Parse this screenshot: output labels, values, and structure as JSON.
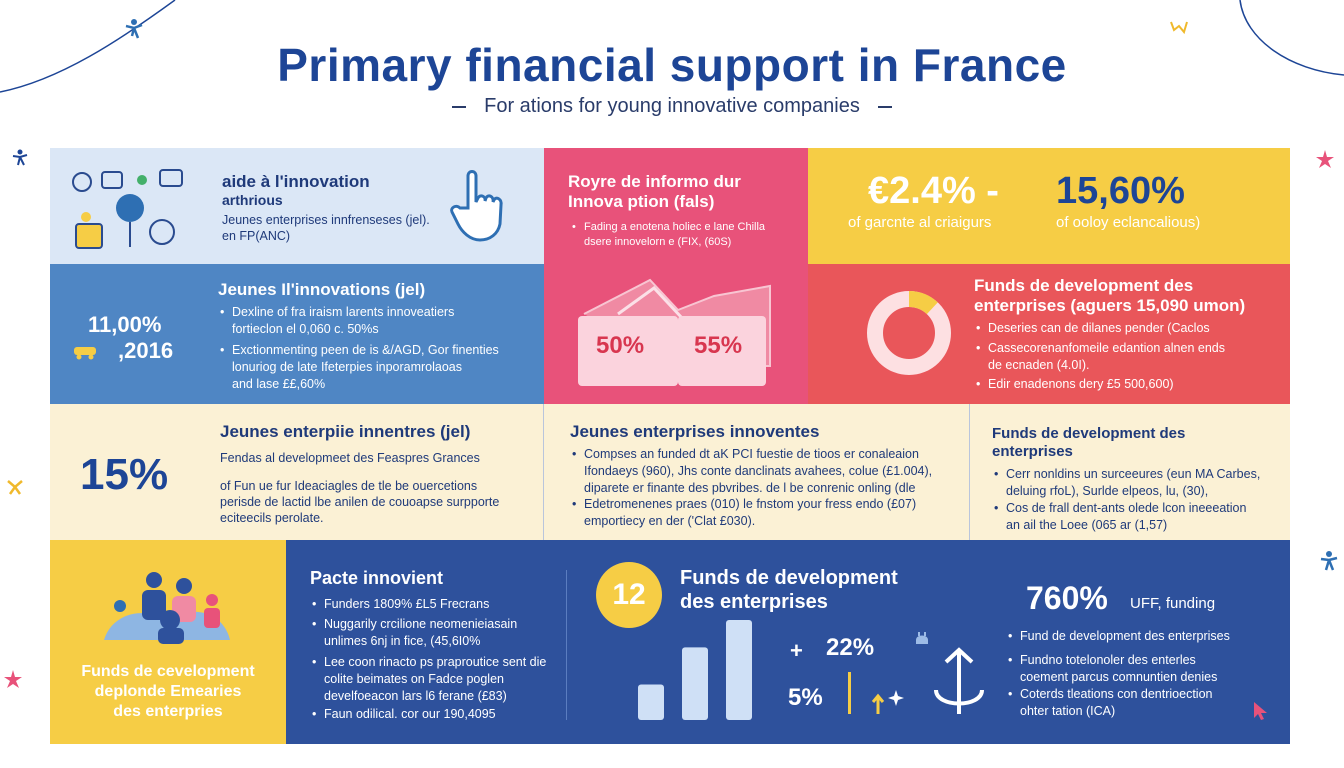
{
  "title": "Primary financial support in France",
  "subtitle": "For ations for young innovative companies",
  "row1": {
    "aide": {
      "title": "aide à l'innovation",
      "sub": "arthrious",
      "line1": "Jeunes enterprises innfrenseses (jel).",
      "line2": "en FP(ANC)"
    },
    "pink": {
      "title1": "Royre de informo dur",
      "title2": "Innova ption (fals)",
      "bullet1a": "Fading a enotena holiec e lane Chilla",
      "bullet1b": "dsere innovelorn e (FIX, (60S)"
    },
    "yellow": {
      "stat1": "€2.4% -",
      "stat1_caption": "of garcnte al criaigurs",
      "stat2": "15,60%",
      "stat2_caption": "of ooloy eclancalious)"
    }
  },
  "row2": {
    "jei": {
      "title": "Jeunes Il'innovations (jel)",
      "stat1": "11,00%",
      "stat2": ",2016",
      "b1a": "Dexline of fra iraism larents innoveatiers",
      "b1b": "fortieclon el 0,060 c. 50%s",
      "b2a": "Exctionmenting peen de is &/AGD, Gor finenties",
      "b2b": "lonuriog de late Ifeterpies inporamrolaoas",
      "b2c": "and lase ££,60%"
    },
    "pink": {
      "bar1": "50%",
      "bar2": "55%"
    },
    "red": {
      "title1": "Funds de development des",
      "title2": "enterprises (aguers 15,090 umon)",
      "b1": "Deseries can de dilanes pender (Caclos",
      "b2a": "Cassecorenanfomeile edantion alnen ends",
      "b2b": "de ecnaden (4.0I).",
      "b3": "Edir enadenons dery £5 500,600)",
      "donut_fraction": 0.12
    }
  },
  "row3": {
    "left": {
      "stat": "15%",
      "title": "Jeunes enterpiie innentres (jel)",
      "line1": "Fendas al developmeet des Feaspres Grances",
      "line2": "of Fun ue fur Ideaciagles de tle be ouercetions",
      "line3": "perisde de lactid lbe anilen de couoapse surpporte",
      "line4": "eciteecils perolate."
    },
    "mid": {
      "title": "Jeunes enterprises innoventes",
      "b1a": "Compses an funded dt aK PCI fuestie de tioos er conaleaion",
      "b1b": "Ifondaeys (960), Jhs conte danclinats avahees, colue (£1.004),",
      "b1c": "diparete er finante des pbvribes. de l be conrenic onling (dle",
      "b2a": "Edetromenenes praes (010) le fnstom your fress endo (£07)",
      "b2b": "emportiecy en der ('Clat £030)."
    },
    "right": {
      "title1": "Funds de development des",
      "title2": "enterprises",
      "b1a": "Cerr nonldins un surceeures (eun MA Carbes,",
      "b1b": "deluing rfoL), Surlde elpeos, lu, (30),",
      "b2a": "Cos de frall dent-ants olede lcon ineeeation",
      "b2b": "an ail the Loee (065 ar (1,57)"
    }
  },
  "row4": {
    "yellow": {
      "caption1": "Funds de cevelopment",
      "caption2": "deplonde Emearies",
      "caption3": "des enterpries"
    },
    "pacte": {
      "title": "Pacte innovient",
      "b1": "Funders 1809% £L5 Frecrans",
      "b2a": "Nuggarily crcilione neomenieiasain",
      "b2b": "unlimes 6nj in fice, (45,6I0%",
      "b3a": "Lee coon rinacto ps praproutice sent die",
      "b3b": "colite beimates on Fadce poglen",
      "b3c": "develfoeacon lars l6 ferane (£83)",
      "b4": "Faun odilical. cor our 190,4095"
    },
    "funds": {
      "circle": "12",
      "title1": "Funds de development",
      "title2": "des enterprises",
      "plus": "+",
      "stat1": "22%",
      "stat2": "5%"
    },
    "right": {
      "stat": "760%",
      "stat_suffix": "UFF, funding",
      "b1": "Fund de development des enterprises",
      "b2a": "Fundno totelonoler des enterles",
      "b2b": "coement parcus comnuntien denies",
      "b3a": "Coterds tleations con dentrioection",
      "b3b": "ohter tation (ICA)"
    }
  },
  "bar_chart": {
    "values": [
      0.22,
      0.45,
      0.62
    ]
  },
  "colors": {
    "title": "#1d4596",
    "lightblue": "#dbe7f6",
    "pink": "#e8527a",
    "yellow": "#f6cd45",
    "blue": "#4f86c4",
    "red": "#e9565a",
    "cream": "#fbf1d5",
    "navy": "#2e519c"
  },
  "icons": [
    "person-icon",
    "pointer-hand-icon",
    "bars-icon",
    "donut-icon",
    "people-icon",
    "anchor-icon",
    "cursor-icon"
  ]
}
